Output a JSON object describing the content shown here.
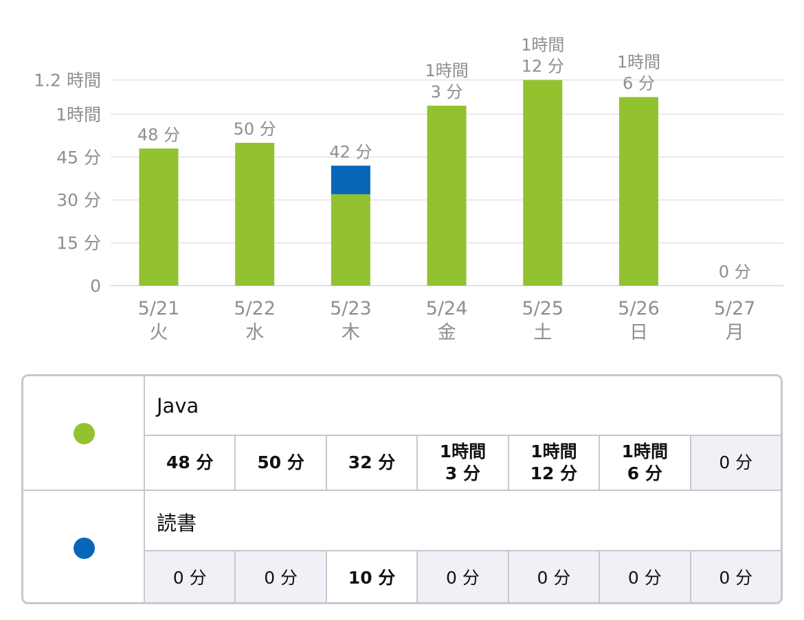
{
  "chart_data": {
    "type": "bar",
    "stacked": true,
    "unit": "minutes",
    "ylim": [
      0,
      75
    ],
    "yticks": [
      {
        "value": 0,
        "label": "0"
      },
      {
        "value": 15,
        "label": "15 分"
      },
      {
        "value": 30,
        "label": "30 分"
      },
      {
        "value": 45,
        "label": "45 分"
      },
      {
        "value": 60,
        "label": "1時間"
      },
      {
        "value": 72,
        "label": "1.2 時間"
      }
    ],
    "categories": [
      {
        "date": "5/21",
        "day": "火"
      },
      {
        "date": "5/22",
        "day": "水"
      },
      {
        "date": "5/23",
        "day": "木"
      },
      {
        "date": "5/24",
        "day": "金"
      },
      {
        "date": "5/25",
        "day": "土"
      },
      {
        "date": "5/26",
        "day": "日"
      },
      {
        "date": "5/27",
        "day": "月"
      }
    ],
    "series": [
      {
        "name": "Java",
        "color": "#92c22f",
        "values": [
          48,
          50,
          32,
          63,
          72,
          66,
          0
        ]
      },
      {
        "name": "読書",
        "color": "#0866b8",
        "values": [
          0,
          0,
          10,
          0,
          0,
          0,
          0
        ]
      }
    ],
    "total_labels": [
      "48 分",
      "50 分",
      "42 分",
      "1時間\n3 分",
      "1時間\n12 分",
      "1時間\n6 分",
      "0 分"
    ]
  },
  "table": {
    "rows": [
      {
        "name": "Java",
        "color": "#92c22f",
        "cells": [
          "48 分",
          "50 分",
          "32 分",
          "1時間\n3 分",
          "1時間\n12 分",
          "1時間\n6 分",
          "0 分"
        ],
        "bold": [
          true,
          true,
          true,
          true,
          true,
          true,
          false
        ]
      },
      {
        "name": "読書",
        "color": "#0866b8",
        "cells": [
          "0 分",
          "0 分",
          "10 分",
          "0 分",
          "0 分",
          "0 分",
          "0 分"
        ],
        "bold": [
          false,
          false,
          true,
          false,
          false,
          false,
          false
        ]
      }
    ]
  }
}
